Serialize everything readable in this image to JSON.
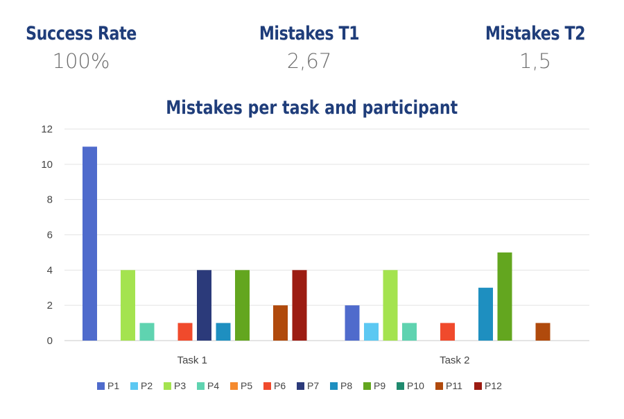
{
  "kpis": {
    "success": {
      "label": "Success Rate",
      "value": "100%"
    },
    "mistakes_t1": {
      "label": "Mistakes T1",
      "value": "2,67"
    },
    "mistakes_t2": {
      "label": "Mistakes T2",
      "value": "1,5"
    }
  },
  "chart_data": {
    "type": "bar",
    "title": "Mistakes per task and participant",
    "xlabel": "",
    "ylabel": "",
    "ylim": [
      0,
      12
    ],
    "yticks": [
      0,
      2,
      4,
      6,
      8,
      10,
      12
    ],
    "grid": true,
    "legend_position": "bottom",
    "categories": [
      "Task 1",
      "Task 2"
    ],
    "series": [
      {
        "name": "P1",
        "color": "#4f6bcc",
        "values": [
          11,
          2
        ]
      },
      {
        "name": "P2",
        "color": "#5cc8f2",
        "values": [
          0,
          1
        ]
      },
      {
        "name": "P3",
        "color": "#a4e34f",
        "values": [
          4,
          4
        ]
      },
      {
        "name": "P4",
        "color": "#5fd3b0",
        "values": [
          1,
          1
        ]
      },
      {
        "name": "P5",
        "color": "#f58a2e",
        "values": [
          0,
          0
        ]
      },
      {
        "name": "P6",
        "color": "#f04a2c",
        "values": [
          1,
          1
        ]
      },
      {
        "name": "P7",
        "color": "#2b3a7a",
        "values": [
          4,
          0
        ]
      },
      {
        "name": "P8",
        "color": "#1e8fc0",
        "values": [
          1,
          3
        ]
      },
      {
        "name": "P9",
        "color": "#63a61f",
        "values": [
          4,
          5
        ]
      },
      {
        "name": "P10",
        "color": "#1f8a6e",
        "values": [
          0,
          0
        ]
      },
      {
        "name": "P11",
        "color": "#b04a0c",
        "values": [
          2,
          1
        ]
      },
      {
        "name": "P12",
        "color": "#9c1c12",
        "values": [
          4,
          0
        ]
      }
    ]
  }
}
